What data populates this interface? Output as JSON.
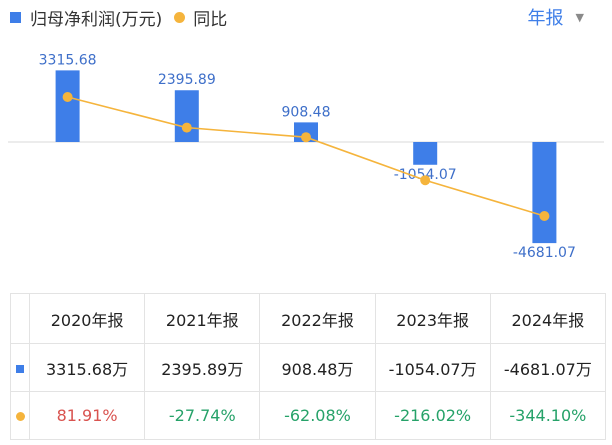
{
  "legend": {
    "bar_label": "归母净利润(万元)",
    "line_label": "同比"
  },
  "period_selector": {
    "label": "年报",
    "caret_icon": "caret-down-icon"
  },
  "colors": {
    "bar": "#3e7ee8",
    "line": "#f5b43c",
    "bar_label": "#3e6fc9",
    "positive": "#d9534f",
    "negative": "#26a269"
  },
  "chart_data": {
    "type": "bar",
    "categories": [
      "2020年报",
      "2021年报",
      "2022年报",
      "2023年报",
      "2024年报"
    ],
    "series": [
      {
        "name": "归母净利润(万元)",
        "type": "bar",
        "values": [
          3315.68,
          2395.89,
          908.48,
          -1054.07,
          -4681.07
        ]
      },
      {
        "name": "同比",
        "type": "line",
        "values": [
          81.91,
          -27.74,
          -62.08,
          -216.02,
          -344.1
        ],
        "unit": "%"
      }
    ],
    "bar_labels": [
      "3315.68",
      "2395.89",
      "908.48",
      "-1054.07",
      "-4681.07"
    ],
    "ylim": [
      -5000,
      4000
    ],
    "y2lim": [
      -450,
      200
    ],
    "grid": false
  },
  "table": {
    "headers": [
      "2020年报",
      "2021年报",
      "2022年报",
      "2023年报",
      "2024年报"
    ],
    "profit_row": [
      "3315.68万",
      "2395.89万",
      "908.48万",
      "-1054.07万",
      "-4681.07万"
    ],
    "yoy_row": [
      "81.91%",
      "-27.74%",
      "-62.08%",
      "-216.02%",
      "-344.10%"
    ]
  }
}
